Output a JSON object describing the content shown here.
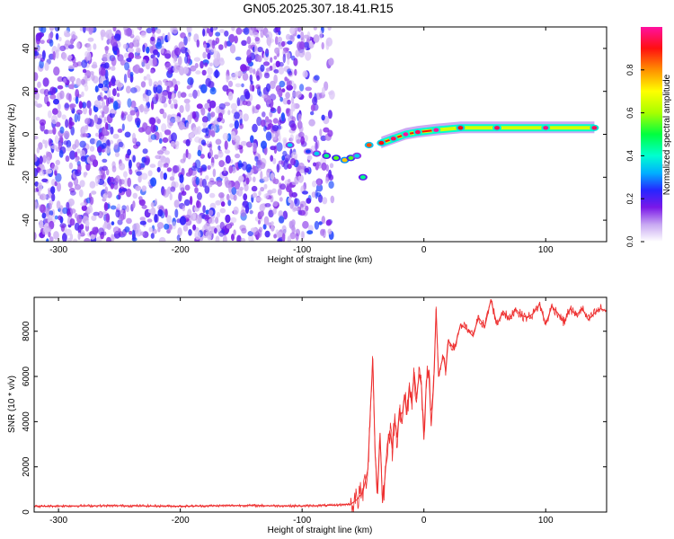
{
  "title": "GN05.2025.307.18.41.R15",
  "chart_data": [
    {
      "type": "heatmap",
      "xlabel": "Height of straight line (km)",
      "ylabel": "Frequency (Hz)",
      "xlim": [
        -320,
        150
      ],
      "ylim": [
        -50,
        50
      ],
      "x_ticks": [
        -300,
        -200,
        -100,
        0,
        100
      ],
      "y_ticks": [
        -40,
        -20,
        0,
        20,
        40
      ],
      "grid": false,
      "colorbar": {
        "label": "Normalized spectral amplitude",
        "range": [
          0.0,
          1.0
        ],
        "ticks": [
          0.0,
          0.2,
          0.4,
          0.6,
          0.8
        ],
        "tick_labels": [
          "0.0",
          "0.2",
          "0.4",
          "0.6",
          "0.8"
        ],
        "colormap": "white-violet-blue-cyan-green-yellow-orange-red-magenta"
      },
      "noise_region": {
        "x": [
          -320,
          -75
        ],
        "y": [
          -50,
          50
        ],
        "amplitude": [
          0.0,
          0.2
        ]
      },
      "ridge": [
        {
          "x": -110,
          "y": -5,
          "v": 0.35
        },
        {
          "x": -95,
          "y": -8,
          "v": 0.25
        },
        {
          "x": -88,
          "y": -9,
          "v": 0.35
        },
        {
          "x": -80,
          "y": -10,
          "v": 0.45
        },
        {
          "x": -72,
          "y": -11,
          "v": 0.55
        },
        {
          "x": -65,
          "y": -12,
          "v": 0.75
        },
        {
          "x": -60,
          "y": -11,
          "v": 0.55
        },
        {
          "x": -55,
          "y": -10,
          "v": 0.35
        },
        {
          "x": -50,
          "y": -20,
          "v": 0.45
        },
        {
          "x": -45,
          "y": -5,
          "v": 0.85
        },
        {
          "x": -35,
          "y": -4,
          "v": 0.9
        },
        {
          "x": -25,
          "y": -2,
          "v": 0.95
        },
        {
          "x": -15,
          "y": 0,
          "v": 1.0
        },
        {
          "x": -5,
          "y": 1,
          "v": 0.95
        },
        {
          "x": 10,
          "y": 2,
          "v": 1.0
        },
        {
          "x": 30,
          "y": 3,
          "v": 0.9
        },
        {
          "x": 60,
          "y": 3,
          "v": 0.95
        },
        {
          "x": 100,
          "y": 3,
          "v": 0.98
        },
        {
          "x": 140,
          "y": 3,
          "v": 0.95
        }
      ]
    },
    {
      "type": "line",
      "xlabel": "Height of straight line (km)",
      "ylabel": "SNR (10 * v/v)",
      "xlim": [
        -320,
        150
      ],
      "ylim": [
        0,
        9500
      ],
      "x_ticks": [
        -300,
        -200,
        -100,
        0,
        100
      ],
      "y_ticks": [
        0,
        2000,
        4000,
        6000,
        8000
      ],
      "grid": false,
      "series": [
        {
          "color": "#ee3030",
          "x": [
            -320,
            -300,
            -250,
            -200,
            -150,
            -100,
            -75,
            -60,
            -55,
            -50,
            -46,
            -44,
            -42,
            -40,
            -38,
            -36,
            -34,
            -32,
            -30,
            -28,
            -26,
            -24,
            -22,
            -20,
            -18,
            -16,
            -14,
            -12,
            -10,
            -8,
            -6,
            -4,
            -2,
            0,
            2,
            4,
            6,
            8,
            10,
            12,
            14,
            16,
            18,
            20,
            25,
            30,
            35,
            40,
            45,
            50,
            55,
            60,
            65,
            70,
            75,
            80,
            85,
            90,
            95,
            100,
            105,
            110,
            115,
            120,
            125,
            130,
            135,
            140,
            145,
            150
          ],
          "y": [
            250,
            270,
            280,
            260,
            290,
            270,
            300,
            350,
            550,
            900,
            1900,
            4500,
            6800,
            2500,
            800,
            3500,
            400,
            1500,
            3000,
            3600,
            2800,
            4100,
            3300,
            4600,
            3900,
            5200,
            4300,
            5600,
            4800,
            6200,
            5000,
            6100,
            5600,
            3200,
            5800,
            6300,
            3800,
            5600,
            9000,
            6000,
            6500,
            6900,
            6200,
            7600,
            7200,
            8300,
            8100,
            7800,
            8600,
            8200,
            9400,
            8300,
            8900,
            8500,
            9000,
            8700,
            8600,
            8800,
            9200,
            8300,
            9100,
            8800,
            8400,
            9000,
            8700,
            9000,
            8500,
            8800,
            9000,
            8900
          ]
        }
      ]
    }
  ]
}
